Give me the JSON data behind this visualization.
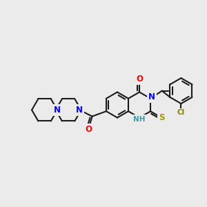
{
  "background_color": "#ebebeb",
  "bond_color": "#1a1a1a",
  "bond_width": 1.5,
  "atom_colors": {
    "N": "#0000ff",
    "O": "#ff0000",
    "S": "#999900",
    "Cl": "#808000",
    "NH": "#4499aa",
    "C": "#1a1a1a"
  },
  "font_size": 7.5
}
